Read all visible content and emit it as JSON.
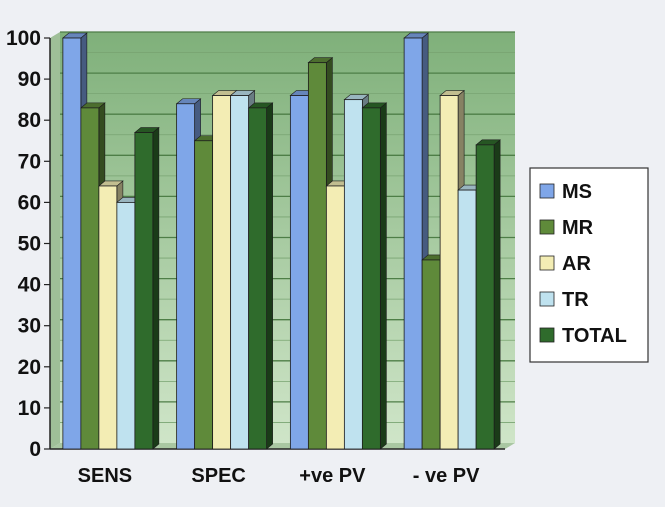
{
  "chart_data": {
    "type": "bar",
    "title": "",
    "xlabel": "",
    "ylabel": "",
    "categories": [
      "SENS",
      "SPEC",
      "+ve PV",
      "- ve PV"
    ],
    "ylim": [
      0,
      100
    ],
    "yticks": [
      0,
      10,
      20,
      30,
      40,
      50,
      60,
      70,
      80,
      90,
      100
    ],
    "grid": true,
    "legend_position": "right",
    "series": [
      {
        "name": "MS",
        "color": "#7fa6e8",
        "values": [
          100,
          84,
          86,
          100
        ]
      },
      {
        "name": "MR",
        "color": "#5f8a3a",
        "values": [
          83,
          75,
          94,
          46
        ]
      },
      {
        "name": "AR",
        "color": "#f3edb4",
        "values": [
          64,
          86,
          64,
          86
        ]
      },
      {
        "name": "TR",
        "color": "#bfe2ef",
        "values": [
          60,
          86,
          85,
          63
        ]
      },
      {
        "name": "TOTAL",
        "color": "#2f6b2c",
        "values": [
          77,
          83,
          83,
          74
        ]
      }
    ]
  }
}
